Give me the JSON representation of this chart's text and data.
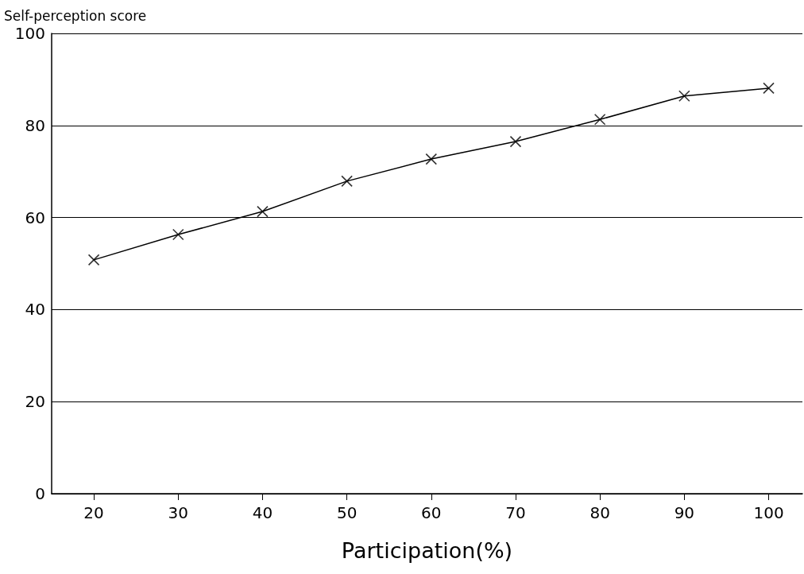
{
  "chart_data": {
    "type": "line",
    "xlabel": "Participation(%)",
    "ylabel": "Self-perception score",
    "x": [
      20,
      30,
      40,
      50,
      60,
      70,
      80,
      90,
      100
    ],
    "series": [
      {
        "color": "#000000",
        "values": [
          50.8,
          56.3,
          61.3,
          67.9,
          72.7,
          76.5,
          81.3,
          86.4,
          88.1
        ]
      }
    ],
    "xlim": [
      15,
      104
    ],
    "xticks": [
      20,
      30,
      40,
      50,
      60,
      70,
      80,
      90,
      100
    ],
    "ylim": [
      0,
      100
    ],
    "yticks": [
      0,
      20,
      40,
      60,
      80,
      100
    ],
    "grid": "y",
    "marker": "cross",
    "line_style": "solid"
  }
}
